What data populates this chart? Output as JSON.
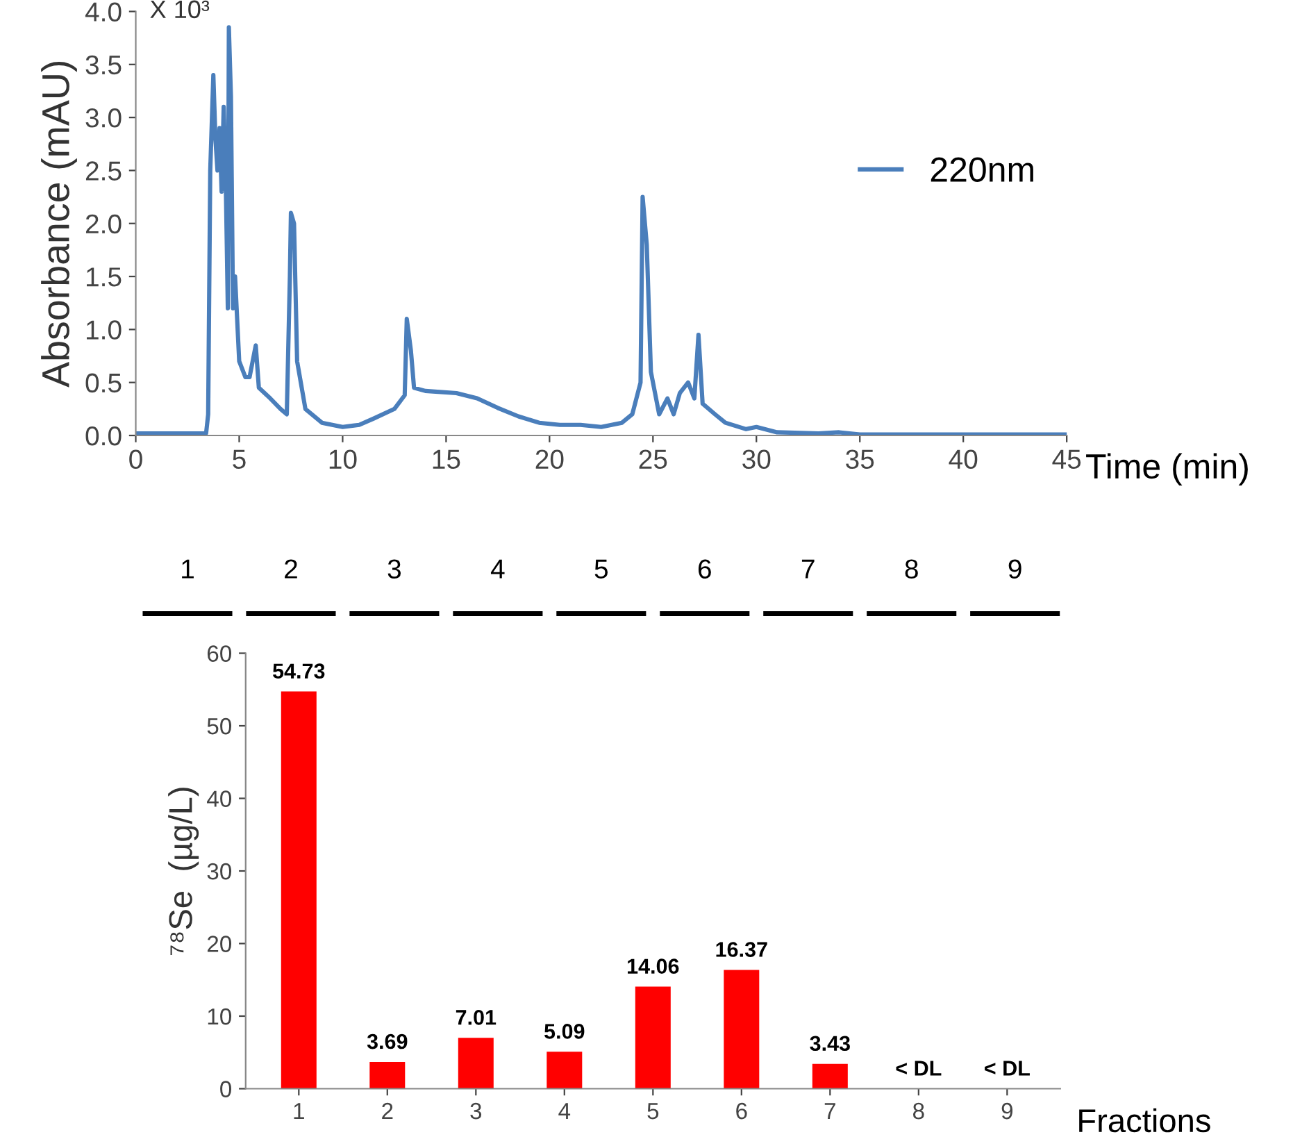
{
  "chart_data": [
    {
      "type": "line",
      "ylabel": "Absorbance (mAU)",
      "xlabel": "Time (min)",
      "annotations": [
        "X 10³",
        "1",
        "2",
        "3",
        "4",
        "5",
        "6",
        "7",
        "8",
        "9"
      ],
      "xlim": [
        0,
        45
      ],
      "xticks": [
        0,
        5,
        10,
        15,
        20,
        25,
        30,
        35,
        40,
        45
      ],
      "ylim": [
        0,
        4
      ],
      "yticks": [
        {
          "value": 0,
          "label": "0.0"
        },
        {
          "value": 0.5,
          "label": "0.5"
        },
        {
          "value": 1,
          "label": "1.0"
        },
        {
          "value": 1.5,
          "label": "1.5"
        },
        {
          "value": 2,
          "label": "2.0"
        },
        {
          "value": 2.5,
          "label": "2.5"
        },
        {
          "value": 3,
          "label": "3.0"
        },
        {
          "value": 3.5,
          "label": "3.5"
        },
        {
          "value": 4,
          "label": "4.0"
        }
      ],
      "grid": false,
      "legend": "right",
      "series": [
        {
          "name": "220nm",
          "color": "#4a7ebb",
          "x": [
            0,
            3.4,
            3.5,
            3.6,
            3.75,
            3.85,
            3.95,
            4.05,
            4.15,
            4.25,
            4.35,
            4.45,
            4.5,
            4.6,
            4.7,
            4.8,
            5.0,
            5.3,
            5.5,
            5.7,
            5.8,
            5.95,
            6.5,
            7.0,
            7.3,
            7.45,
            7.5,
            7.65,
            7.8,
            8.2,
            9,
            10,
            10.8,
            11.5,
            12.5,
            13.0,
            13.1,
            13.3,
            13.45,
            14,
            15.5,
            16.5,
            17.5,
            18.5,
            19.5,
            20.5,
            21.5,
            22.5,
            23.5,
            24.0,
            24.4,
            24.5,
            24.7,
            24.9,
            25.3,
            25.7,
            26.0,
            26.3,
            26.7,
            27.0,
            27.2,
            27.4,
            28,
            28.5,
            29.5,
            30,
            31,
            33,
            34,
            35,
            40,
            45
          ],
          "values": [
            0.02,
            0.02,
            0.2,
            2.5,
            3.4,
            2.8,
            2.5,
            2.9,
            2.3,
            3.1,
            2.4,
            1.2,
            3.85,
            3.2,
            1.2,
            1.5,
            0.7,
            0.55,
            0.55,
            0.75,
            0.85,
            0.45,
            0.35,
            0.25,
            0.2,
            1.5,
            2.1,
            2.0,
            0.7,
            0.25,
            0.12,
            0.08,
            0.1,
            0.16,
            0.25,
            0.38,
            1.1,
            0.8,
            0.45,
            0.42,
            0.4,
            0.35,
            0.26,
            0.18,
            0.12,
            0.1,
            0.1,
            0.08,
            0.12,
            0.2,
            0.5,
            2.25,
            1.8,
            0.6,
            0.2,
            0.35,
            0.2,
            0.4,
            0.5,
            0.35,
            0.95,
            0.3,
            0.2,
            0.12,
            0.06,
            0.08,
            0.03,
            0.02,
            0.03,
            0.01,
            0.01,
            0.01
          ]
        }
      ]
    },
    {
      "type": "bar",
      "xlabel": "Fractions",
      "ylabel": "⁷⁸Se  (µg/L)",
      "categories": [
        "1",
        "2",
        "3",
        "4",
        "5",
        "6",
        "7",
        "8",
        "9"
      ],
      "values": [
        54.73,
        3.69,
        7.01,
        5.09,
        14.06,
        16.37,
        3.43,
        null,
        null
      ],
      "value_labels": [
        "54.73",
        "3.69",
        "7.01",
        "5.09",
        "14.06",
        "16.37",
        "3.43",
        "< DL",
        "< DL"
      ],
      "color": "#ff0000",
      "ylim": [
        0,
        60
      ],
      "yticks": [
        0,
        10,
        20,
        30,
        40,
        50,
        60
      ],
      "grid": false
    }
  ]
}
